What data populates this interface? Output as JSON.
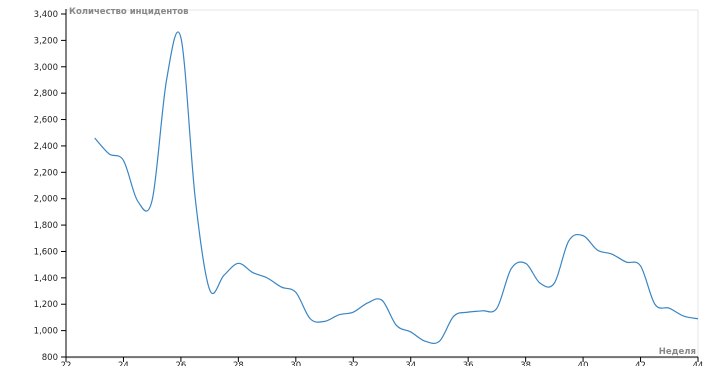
{
  "chart_data": {
    "type": "line",
    "title": "",
    "xlabel": "Неделя",
    "ylabel": "Количество инцидентов",
    "xlim": [
      22,
      44
    ],
    "ylim": [
      800,
      3400
    ],
    "x_ticks": [
      22,
      24,
      26,
      28,
      30,
      32,
      34,
      36,
      38,
      40,
      42,
      44
    ],
    "y_ticks": [
      800,
      1000,
      1200,
      1400,
      1600,
      1800,
      2000,
      2200,
      2400,
      2600,
      2800,
      3000,
      3200,
      3400
    ],
    "x_tick_labels": [
      "22",
      "24",
      "26",
      "28",
      "30",
      "32",
      "34",
      "36",
      "38",
      "40",
      "42",
      "44"
    ],
    "y_tick_labels": [
      "800",
      "1,000",
      "1,200",
      "1,400",
      "1,600",
      "1,800",
      "2,000",
      "2,200",
      "2,400",
      "2,600",
      "2,800",
      "3,000",
      "3,200",
      "3,400"
    ],
    "grid": false,
    "line_color": "#3a85c3",
    "series": [
      {
        "x": [
          23,
          23.5,
          24,
          24.5,
          25,
          25.5,
          26,
          26.5,
          27,
          27.5,
          28,
          28.5,
          29,
          29.5,
          30,
          30.5,
          31,
          31.5,
          32,
          32.5,
          33,
          33.5,
          34,
          34.5,
          35,
          35.5,
          36,
          36.5,
          37,
          37.5,
          38,
          38.5,
          39,
          39.5,
          40,
          40.5,
          41,
          41.5,
          42,
          42.5,
          43,
          43.5,
          44
        ],
        "values": [
          2460,
          2340,
          2290,
          1980,
          1990,
          2900,
          3220,
          2000,
          1310,
          1420,
          1510,
          1440,
          1400,
          1330,
          1290,
          1090,
          1070,
          1120,
          1140,
          1210,
          1230,
          1040,
          990,
          920,
          920,
          1110,
          1140,
          1150,
          1170,
          1470,
          1510,
          1360,
          1360,
          1680,
          1720,
          1610,
          1580,
          1520,
          1490,
          1200,
          1170,
          1110,
          1090
        ]
      }
    ]
  }
}
